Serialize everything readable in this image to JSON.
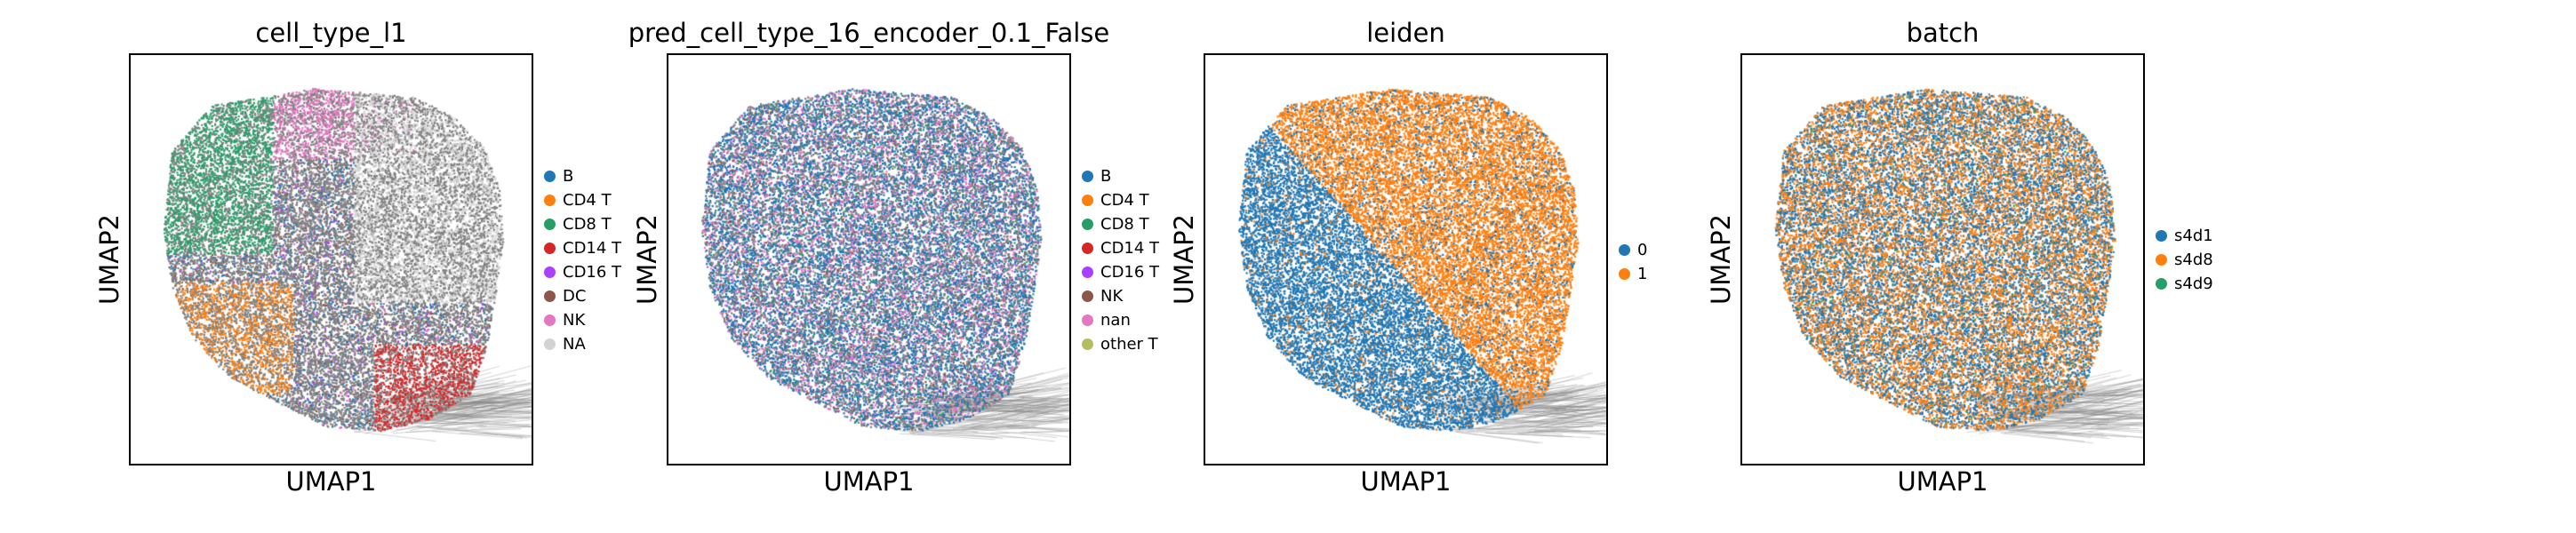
{
  "chart_data": [
    {
      "type": "scatter",
      "title": "cell_type_l1",
      "xlabel": "UMAP1",
      "ylabel": "UMAP2",
      "legend_placement": "right",
      "grid": false,
      "ticks": false,
      "categories": [
        "B",
        "CD4 T",
        "CD8 T",
        "CD14 T",
        "CD16 T",
        "DC",
        "NK",
        "NA"
      ],
      "colors": [
        "#1f77b4",
        "#ff7f0e",
        "#279e68",
        "#d62728",
        "#aa40fc",
        "#8c564b",
        "#e377c2",
        "#d3d3d3"
      ],
      "pattern": "celltype"
    },
    {
      "type": "scatter",
      "title": "pred_cell_type_16_encoder_0.1_False",
      "xlabel": "UMAP1",
      "ylabel": "UMAP2",
      "legend_placement": "right",
      "grid": false,
      "ticks": false,
      "categories": [
        "B",
        "CD4 T",
        "CD8 T",
        "CD14 T",
        "CD16 T",
        "NK",
        "nan",
        "other T"
      ],
      "colors": [
        "#1f77b4",
        "#ff7f0e",
        "#279e68",
        "#d62728",
        "#aa40fc",
        "#8c564b",
        "#e377c2",
        "#b5bd61"
      ],
      "pattern": "pred"
    },
    {
      "type": "scatter",
      "title": "leiden",
      "xlabel": "UMAP1",
      "ylabel": "UMAP2",
      "legend_placement": "right",
      "grid": false,
      "ticks": false,
      "categories": [
        "0",
        "1"
      ],
      "colors": [
        "#1f77b4",
        "#ff7f0e"
      ],
      "pattern": "leiden"
    },
    {
      "type": "scatter",
      "title": "batch",
      "xlabel": "UMAP1",
      "ylabel": "UMAP2",
      "legend_placement": "right",
      "grid": false,
      "ticks": false,
      "categories": [
        "s4d1",
        "s4d8",
        "s4d9"
      ],
      "colors": [
        "#1f77b4",
        "#ff7f0e",
        "#279e68"
      ],
      "pattern": "batch"
    }
  ]
}
